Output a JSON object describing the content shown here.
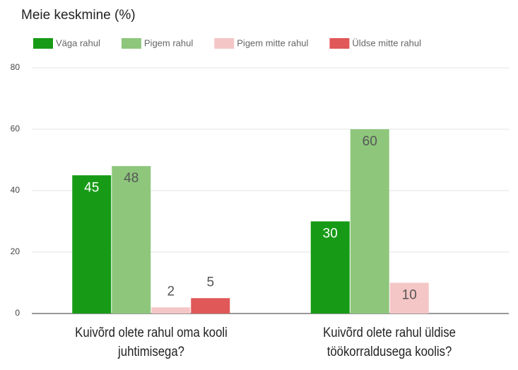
{
  "chart_data": {
    "type": "bar",
    "title": "Meie keskmine (%)",
    "categories": [
      "Kuivõrd olete rahul oma kooli juhtimisega?",
      "Kuivõrd olete rahul üldise töökorraldusega koolis?"
    ],
    "series": [
      {
        "name": "Väga rahul",
        "color": "#179b17",
        "values": [
          45,
          30
        ]
      },
      {
        "name": "Pigem rahul",
        "color": "#8ec77c",
        "values": [
          48,
          60
        ]
      },
      {
        "name": "Pigem mitte rahul",
        "color": "#f5c6c6",
        "values": [
          2,
          10
        ]
      },
      {
        "name": "Üldse mitte rahul",
        "color": "#e05858",
        "values": [
          5,
          null
        ]
      }
    ],
    "ylim": [
      0,
      80
    ],
    "yticks": [
      0,
      20,
      40,
      60,
      80
    ],
    "grid": true,
    "legend": "top"
  }
}
